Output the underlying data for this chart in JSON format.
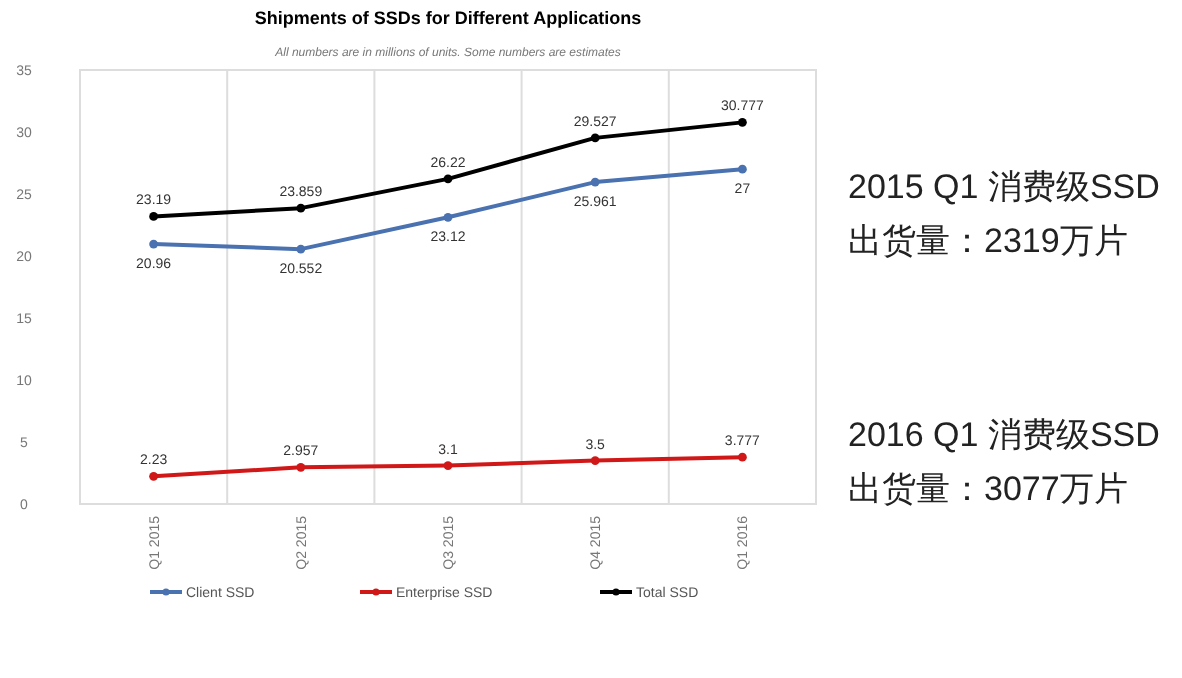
{
  "chart_data": {
    "type": "line",
    "title": "Shipments of SSDs for Different Applications",
    "subtitle": "All numbers are in millions of units. Some numbers are estimates",
    "categories": [
      "Q1 2015",
      "Q2 2015",
      "Q3 2015",
      "Q4 2015",
      "Q1 2016"
    ],
    "series": [
      {
        "name": "Client SSD",
        "color": "#4a72b0",
        "values": [
          20.96,
          20.552,
          23.12,
          25.961,
          27
        ]
      },
      {
        "name": "Enterprise SSD",
        "color": "#d01818",
        "values": [
          2.23,
          2.957,
          3.1,
          3.5,
          3.777
        ]
      },
      {
        "name": "Total SSD",
        "color": "#000000",
        "values": [
          23.19,
          23.859,
          26.22,
          29.527,
          30.777
        ]
      }
    ],
    "ylim": [
      0,
      35
    ],
    "yticks": [
      0,
      5,
      10,
      15,
      20,
      25,
      30,
      35
    ],
    "grid": "x",
    "legend": "bottom",
    "marker": "circle",
    "line_style": "solid",
    "data_labels": true,
    "annotations": [
      "2015 Q1 消费级SSD\n出货量：2319万片",
      "2016 Q1 消费级SSD\n出货量：3077万片"
    ]
  }
}
